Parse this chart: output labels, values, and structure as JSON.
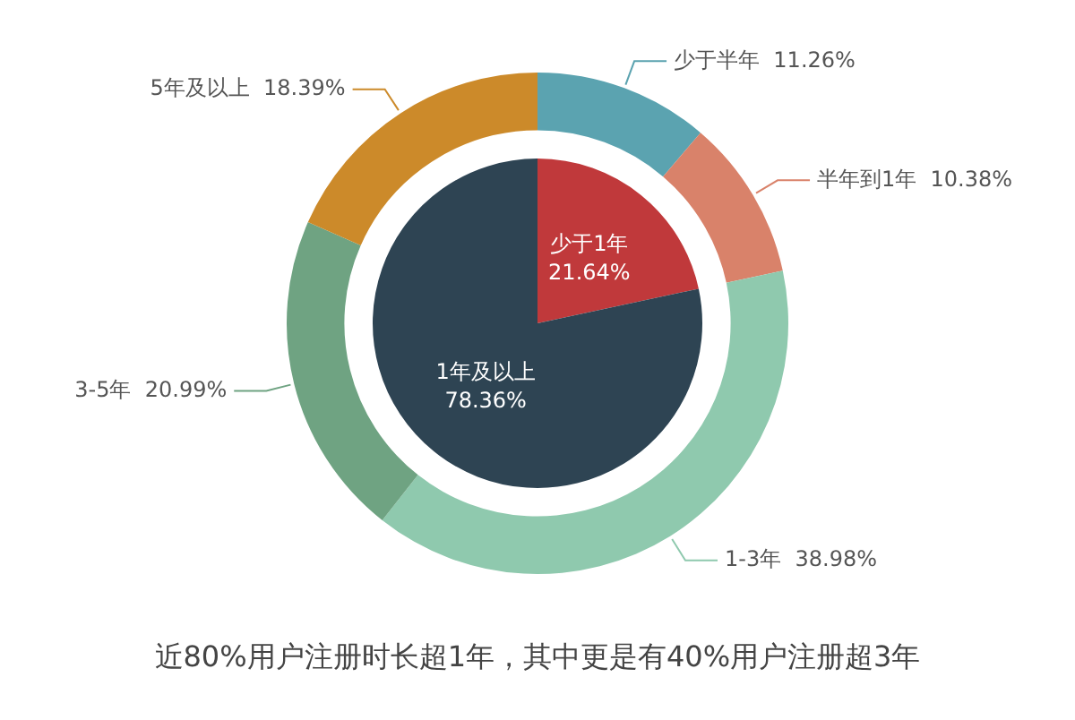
{
  "chart_data": [
    {
      "type": "pie",
      "categories": [
        "少于1年",
        "1年及以上"
      ],
      "values": [
        21.64,
        78.36
      ],
      "colors": [
        "#c0393b",
        "#2e4453"
      ],
      "value_labels": [
        "21.64%",
        "78.36%"
      ],
      "title": "近80%用户注册时长超1年，其中更是有40%用户注册超3年"
    },
    {
      "type": "donut",
      "categories": [
        "少于半年",
        "半年到1年",
        "1-3年",
        "3-5年",
        "5年及以上"
      ],
      "values": [
        11.26,
        10.38,
        38.98,
        20.99,
        18.39
      ],
      "colors": [
        "#5ba3b0",
        "#d9826a",
        "#8fc9ae",
        "#6fa382",
        "#cc8a2a"
      ],
      "value_labels": [
        "11.26%",
        "10.38%",
        "38.98%",
        "20.99%",
        "18.39%"
      ]
    }
  ]
}
